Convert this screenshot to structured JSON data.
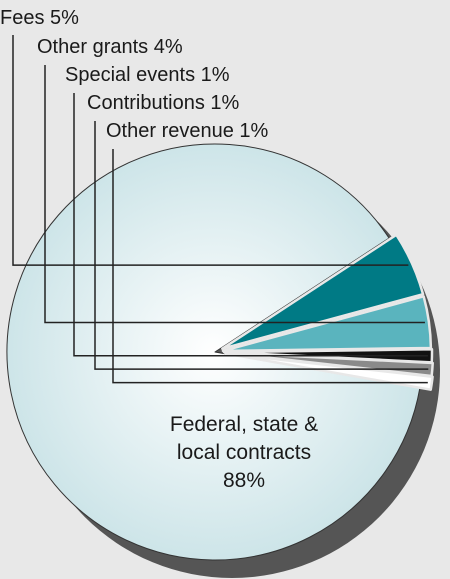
{
  "chart_data": {
    "type": "pie",
    "exploded": true,
    "shadow": true,
    "slices": [
      {
        "label": "Federal, state & local contracts",
        "label_lines": [
          "Federal, state &",
          "local contracts",
          "88%"
        ],
        "value": 88,
        "color": "#c8e2e6"
      },
      {
        "label": "Fees",
        "display": "Fees 5%",
        "value": 5,
        "color": "#007a85"
      },
      {
        "label": "Other grants",
        "display": "Other grants 4%",
        "value": 4,
        "color": "#5ab4be"
      },
      {
        "label": "Special events",
        "display": "Special events 1%",
        "value": 1,
        "color": "#111111"
      },
      {
        "label": "Contributions",
        "display": "Contributions 1%",
        "value": 1,
        "color": "#8a8a8a"
      },
      {
        "label": "Other revenue",
        "display": "Other revenue 1%",
        "value": 1,
        "color": "#ffffff"
      }
    ]
  }
}
